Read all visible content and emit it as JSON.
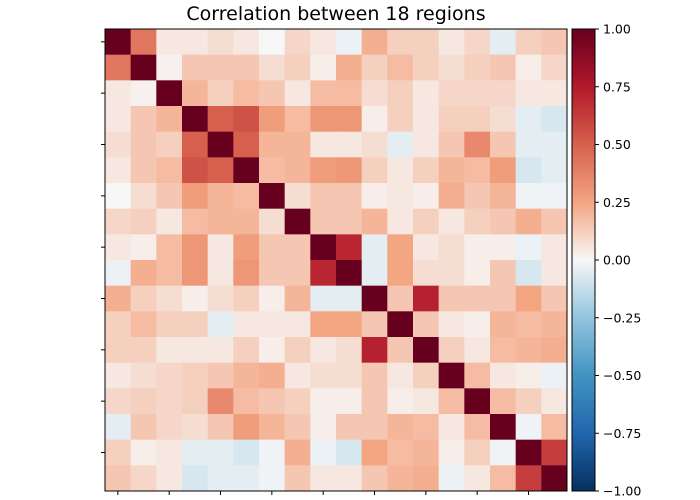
{
  "chart_data": {
    "type": "heatmap",
    "title": "Correlation between 18 regions",
    "xlabel": "",
    "ylabel": "",
    "rows": 18,
    "cols": 18,
    "colormap": "RdBu_r",
    "vmin": -1.0,
    "vmax": 1.0,
    "colorbar": {
      "ticks": [
        1.0,
        0.75,
        0.5,
        0.25,
        0.0,
        -0.25,
        -0.5,
        -0.75,
        -1.0
      ],
      "tick_labels": [
        "1.00",
        "0.75",
        "0.50",
        "0.25",
        "0.00",
        "−0.25",
        "−0.50",
        "−0.75",
        "−1.00"
      ]
    },
    "axis_tick_labels_shown": false,
    "matrix": [
      [
        1.0,
        0.42,
        0.05,
        0.05,
        0.08,
        0.05,
        0.0,
        0.1,
        0.05,
        -0.03,
        0.22,
        0.12,
        0.12,
        0.05,
        0.1,
        -0.05,
        0.12,
        0.15
      ],
      [
        0.42,
        1.0,
        0.02,
        0.15,
        0.15,
        0.15,
        0.08,
        0.12,
        0.03,
        0.22,
        0.12,
        0.18,
        0.12,
        0.08,
        0.12,
        0.15,
        0.03,
        0.1
      ],
      [
        0.05,
        0.02,
        1.0,
        0.2,
        0.12,
        0.18,
        0.15,
        0.05,
        0.18,
        0.18,
        0.08,
        0.12,
        0.05,
        0.1,
        0.1,
        0.1,
        0.05,
        0.05
      ],
      [
        0.05,
        0.15,
        0.2,
        1.0,
        0.5,
        0.55,
        0.28,
        0.18,
        0.3,
        0.3,
        0.03,
        0.12,
        0.05,
        0.12,
        0.12,
        0.08,
        -0.05,
        -0.08
      ],
      [
        0.08,
        0.15,
        0.12,
        0.5,
        1.0,
        0.5,
        0.2,
        0.2,
        0.05,
        0.05,
        0.08,
        -0.05,
        0.05,
        0.15,
        0.35,
        0.15,
        -0.05,
        -0.05
      ],
      [
        0.05,
        0.15,
        0.18,
        0.55,
        0.5,
        1.0,
        0.18,
        0.2,
        0.28,
        0.3,
        0.12,
        0.05,
        0.12,
        0.2,
        0.18,
        0.28,
        -0.08,
        -0.05
      ],
      [
        0.0,
        0.08,
        0.15,
        0.28,
        0.2,
        0.18,
        1.0,
        0.08,
        0.15,
        0.15,
        0.03,
        0.05,
        0.03,
        0.22,
        0.15,
        0.2,
        -0.02,
        -0.02
      ],
      [
        0.1,
        0.12,
        0.05,
        0.18,
        0.2,
        0.2,
        0.08,
        1.0,
        0.15,
        0.15,
        0.2,
        0.05,
        0.12,
        0.05,
        0.12,
        0.15,
        0.22,
        0.15
      ],
      [
        0.05,
        0.03,
        0.18,
        0.3,
        0.05,
        0.28,
        0.15,
        0.15,
        1.0,
        0.7,
        -0.05,
        0.25,
        0.05,
        0.08,
        0.03,
        0.03,
        -0.03,
        0.05
      ],
      [
        -0.03,
        0.22,
        0.18,
        0.3,
        0.05,
        0.3,
        0.15,
        0.15,
        0.7,
        1.0,
        -0.05,
        0.25,
        0.08,
        0.08,
        0.03,
        0.15,
        -0.08,
        0.05
      ],
      [
        0.22,
        0.12,
        0.08,
        0.03,
        0.08,
        0.12,
        0.03,
        0.2,
        -0.05,
        -0.05,
        1.0,
        0.15,
        0.72,
        0.15,
        0.15,
        0.15,
        0.25,
        0.15
      ],
      [
        0.12,
        0.18,
        0.12,
        0.12,
        -0.05,
        0.05,
        0.05,
        0.05,
        0.25,
        0.25,
        0.15,
        1.0,
        0.15,
        0.05,
        0.03,
        0.2,
        0.18,
        0.2
      ],
      [
        0.12,
        0.12,
        0.05,
        0.05,
        0.05,
        0.12,
        0.03,
        0.12,
        0.05,
        0.08,
        0.72,
        0.15,
        1.0,
        0.12,
        0.05,
        0.18,
        0.2,
        0.22
      ],
      [
        0.05,
        0.08,
        0.1,
        0.12,
        0.15,
        0.2,
        0.22,
        0.05,
        0.08,
        0.08,
        0.15,
        0.05,
        0.12,
        1.0,
        0.18,
        0.05,
        0.03,
        -0.03
      ],
      [
        0.1,
        0.12,
        0.1,
        0.12,
        0.35,
        0.18,
        0.15,
        0.12,
        0.03,
        0.03,
        0.15,
        0.03,
        0.05,
        0.18,
        1.0,
        0.18,
        0.12,
        0.05
      ],
      [
        -0.05,
        0.15,
        0.1,
        0.08,
        0.15,
        0.28,
        0.2,
        0.15,
        0.03,
        0.15,
        0.15,
        0.2,
        0.18,
        0.05,
        0.18,
        1.0,
        -0.02,
        0.18
      ],
      [
        0.12,
        0.03,
        0.05,
        -0.05,
        -0.05,
        -0.08,
        -0.02,
        0.22,
        -0.03,
        -0.08,
        0.25,
        0.18,
        0.2,
        0.03,
        0.12,
        -0.02,
        1.0,
        0.62
      ],
      [
        0.15,
        0.1,
        0.05,
        -0.08,
        -0.05,
        -0.05,
        -0.02,
        0.15,
        0.05,
        0.05,
        0.15,
        0.2,
        0.22,
        -0.03,
        0.05,
        0.18,
        0.62,
        1.0
      ]
    ]
  }
}
